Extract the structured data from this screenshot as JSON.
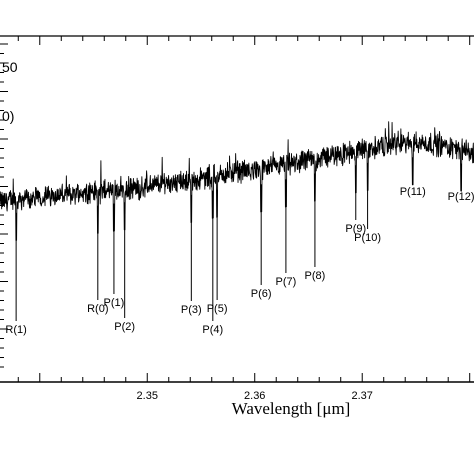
{
  "chart_data": {
    "type": "line",
    "xlabel": "Wavelength [μm]",
    "ylabel": "",
    "xlim": [
      2.3363,
      2.3804
    ],
    "ylim": [
      0,
      1
    ],
    "x_ticks": [
      {
        "value": 2.35,
        "label": "2.35"
      },
      {
        "value": 2.36,
        "label": "2.36"
      },
      {
        "value": 2.37,
        "label": "2.37"
      }
    ],
    "clipped_text": [
      "50",
      "0)"
    ],
    "grid": false,
    "legend": "none",
    "absorption_lines": [
      {
        "label": "R(1)",
        "x": 2.3378
      },
      {
        "label": "R(0)",
        "x": 2.3454
      },
      {
        "label": "P(1)",
        "x": 2.3469
      },
      {
        "label": "P(2)",
        "x": 2.3479
      },
      {
        "label": "P(3)",
        "x": 2.3541
      },
      {
        "label": "P(4)",
        "x": 2.3561
      },
      {
        "label": "P(5)",
        "x": 2.3565
      },
      {
        "label": "P(6)",
        "x": 2.3606
      },
      {
        "label": "P(7)",
        "x": 2.3629
      },
      {
        "label": "P(8)",
        "x": 2.3656
      },
      {
        "label": "P(9)",
        "x": 2.3694
      },
      {
        "label": "P(10)",
        "x": 2.3705
      },
      {
        "label": "P(11)",
        "x": 2.3747
      },
      {
        "label": "P(12)",
        "x": 2.3792
      }
    ],
    "series": [
      {
        "x": [
          2.3363,
          2.3379,
          2.3395,
          2.3411,
          2.3427,
          2.3443,
          2.3459,
          2.3475,
          2.3491,
          2.3507,
          2.3523,
          2.3539,
          2.3555,
          2.3571,
          2.3587,
          2.3603,
          2.3619,
          2.3635,
          2.3651,
          2.3667,
          2.3683,
          2.3699,
          2.3715,
          2.3731,
          2.3747,
          2.3763,
          2.3779,
          2.3795,
          2.3804
        ],
        "values": [
          0.52,
          0.53,
          0.53,
          0.54,
          0.54,
          0.55,
          0.55,
          0.56,
          0.56,
          0.57,
          0.58,
          0.58,
          0.59,
          0.6,
          0.61,
          0.61,
          0.62,
          0.63,
          0.64,
          0.65,
          0.66,
          0.67,
          0.68,
          0.69,
          0.69,
          0.69,
          0.68,
          0.67,
          0.66
        ]
      }
    ]
  }
}
